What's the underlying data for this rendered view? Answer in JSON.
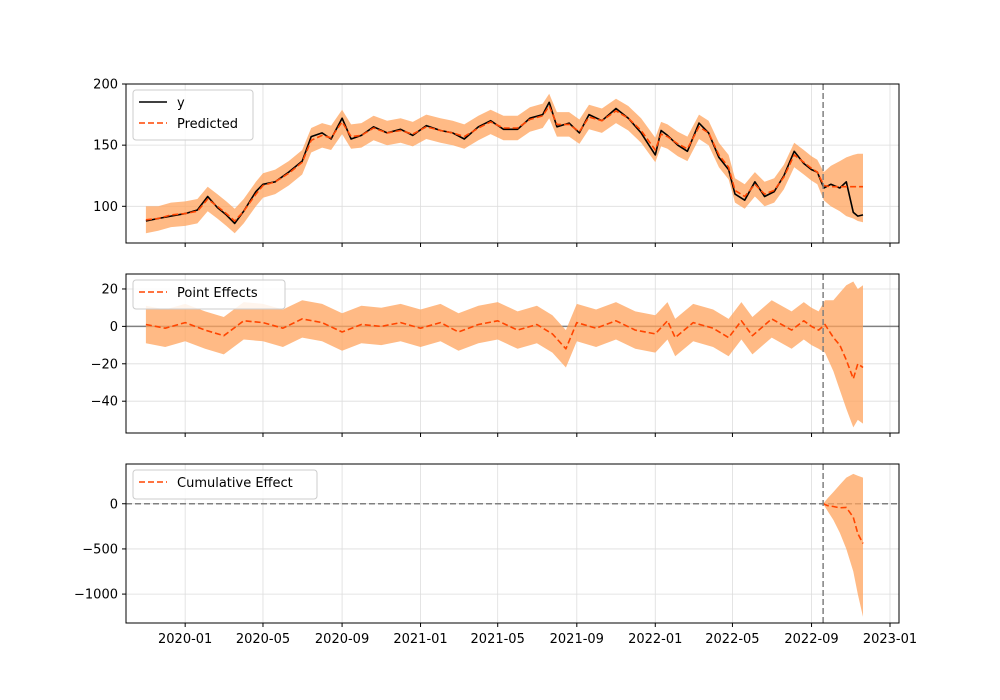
{
  "chart_data": [
    {
      "type": "line",
      "panel": "observed-vs-predicted",
      "ylim": [
        70,
        200
      ],
      "yticks": [
        100,
        150,
        200
      ],
      "ytick_labels": [
        "100",
        "150",
        "200"
      ],
      "grid": true,
      "legend_position": "top-left",
      "series": [
        {
          "name": "y",
          "color": "#000000",
          "style": "solid",
          "x": [
            "2019-11-01",
            "2019-11-20",
            "2019-12-10",
            "2020-01-01",
            "2020-01-20",
            "2020-02-05",
            "2020-02-20",
            "2020-03-05",
            "2020-03-18",
            "2020-04-01",
            "2020-04-20",
            "2020-05-01",
            "2020-05-20",
            "2020-06-10",
            "2020-07-01",
            "2020-07-15",
            "2020-08-01",
            "2020-08-15",
            "2020-09-01",
            "2020-09-15",
            "2020-10-01",
            "2020-10-20",
            "2020-11-10",
            "2020-12-01",
            "2020-12-20",
            "2021-01-10",
            "2021-02-01",
            "2021-02-20",
            "2021-03-10",
            "2021-04-01",
            "2021-04-20",
            "2021-05-10",
            "2021-06-01",
            "2021-06-20",
            "2021-07-10",
            "2021-07-20",
            "2021-08-01",
            "2021-08-20",
            "2021-09-05",
            "2021-09-20",
            "2021-10-10",
            "2021-11-01",
            "2021-11-20",
            "2021-12-10",
            "2022-01-01",
            "2022-01-10",
            "2022-01-20",
            "2022-02-05",
            "2022-02-20",
            "2022-03-10",
            "2022-03-25",
            "2022-04-10",
            "2022-04-25",
            "2022-05-05",
            "2022-05-20",
            "2022-06-05",
            "2022-06-20",
            "2022-07-05",
            "2022-07-20",
            "2022-08-05",
            "2022-08-20",
            "2022-09-01",
            "2022-09-10",
            "2022-09-20",
            "2022-10-01",
            "2022-10-15",
            "2022-10-25",
            "2022-11-05",
            "2022-11-12",
            "2022-11-20"
          ],
          "values": [
            88,
            90,
            92,
            94,
            97,
            108,
            99,
            93,
            86,
            96,
            112,
            118,
            120,
            128,
            137,
            157,
            160,
            155,
            172,
            155,
            158,
            165,
            160,
            163,
            158,
            166,
            162,
            160,
            155,
            165,
            170,
            163,
            163,
            172,
            175,
            185,
            165,
            168,
            160,
            175,
            170,
            180,
            172,
            160,
            142,
            162,
            158,
            150,
            145,
            168,
            160,
            140,
            130,
            110,
            105,
            120,
            108,
            112,
            125,
            145,
            135,
            130,
            128,
            115,
            118,
            115,
            120,
            95,
            92,
            93
          ]
        },
        {
          "name": "Predicted",
          "color": "#ff4500",
          "style": "dashed",
          "x": [
            "2019-11-01",
            "2019-11-20",
            "2019-12-10",
            "2020-01-01",
            "2020-01-20",
            "2020-02-05",
            "2020-02-20",
            "2020-03-05",
            "2020-03-18",
            "2020-04-01",
            "2020-04-20",
            "2020-05-01",
            "2020-05-20",
            "2020-06-10",
            "2020-07-01",
            "2020-07-15",
            "2020-08-01",
            "2020-08-15",
            "2020-09-01",
            "2020-09-15",
            "2020-10-01",
            "2020-10-20",
            "2020-11-10",
            "2020-12-01",
            "2020-12-20",
            "2021-01-10",
            "2021-02-01",
            "2021-02-20",
            "2021-03-10",
            "2021-04-01",
            "2021-04-20",
            "2021-05-10",
            "2021-06-01",
            "2021-06-20",
            "2021-07-10",
            "2021-07-20",
            "2021-08-01",
            "2021-08-20",
            "2021-09-05",
            "2021-09-20",
            "2021-10-10",
            "2021-11-01",
            "2021-11-20",
            "2021-12-10",
            "2022-01-01",
            "2022-01-10",
            "2022-01-20",
            "2022-02-05",
            "2022-02-20",
            "2022-03-10",
            "2022-03-25",
            "2022-04-10",
            "2022-04-25",
            "2022-05-05",
            "2022-05-20",
            "2022-06-05",
            "2022-06-20",
            "2022-07-05",
            "2022-07-20",
            "2022-08-05",
            "2022-08-20",
            "2022-09-01",
            "2022-09-10",
            "2022-09-20",
            "2022-10-01",
            "2022-10-15",
            "2022-10-25",
            "2022-11-05",
            "2022-11-12",
            "2022-11-20"
          ],
          "values": [
            89,
            90,
            93,
            94,
            96,
            106,
            100,
            94,
            88,
            96,
            110,
            117,
            120,
            127,
            136,
            154,
            158,
            156,
            169,
            157,
            158,
            164,
            160,
            162,
            159,
            165,
            162,
            160,
            157,
            164,
            169,
            164,
            164,
            171,
            174,
            182,
            167,
            167,
            161,
            173,
            170,
            178,
            172,
            162,
            146,
            159,
            157,
            151,
            147,
            165,
            160,
            142,
            132,
            113,
            108,
            118,
            110,
            113,
            124,
            142,
            136,
            131,
            128,
            117,
            116,
            116,
            116,
            116,
            116,
            116
          ]
        }
      ],
      "band": {
        "series": "Predicted",
        "color": "#ffa35c",
        "lower": [
          78,
          80,
          83,
          84,
          86,
          96,
          90,
          84,
          78,
          86,
          100,
          107,
          110,
          117,
          126,
          144,
          148,
          146,
          159,
          147,
          148,
          154,
          150,
          152,
          149,
          155,
          152,
          150,
          147,
          154,
          159,
          154,
          154,
          161,
          164,
          172,
          157,
          157,
          151,
          163,
          160,
          168,
          162,
          152,
          136,
          149,
          147,
          141,
          137,
          155,
          150,
          132,
          122,
          103,
          98,
          108,
          100,
          103,
          114,
          132,
          126,
          121,
          118,
          105,
          100,
          96,
          92,
          90,
          88,
          87
        ],
        "upper": [
          100,
          100,
          103,
          104,
          106,
          116,
          110,
          104,
          98,
          106,
          120,
          127,
          130,
          137,
          146,
          164,
          168,
          166,
          179,
          167,
          168,
          174,
          170,
          172,
          169,
          175,
          172,
          170,
          167,
          174,
          179,
          174,
          174,
          181,
          184,
          192,
          177,
          177,
          171,
          183,
          180,
          188,
          182,
          172,
          156,
          169,
          167,
          161,
          157,
          175,
          170,
          152,
          142,
          123,
          118,
          128,
          120,
          123,
          134,
          152,
          146,
          141,
          138,
          128,
          133,
          137,
          140,
          142,
          143,
          143
        ]
      }
    },
    {
      "type": "line",
      "panel": "point-effects",
      "ylim": [
        -57,
        28
      ],
      "yticks": [
        -40,
        -20,
        0,
        20
      ],
      "ytick_labels": [
        "−40",
        "−20",
        "0",
        "20"
      ],
      "grid": true,
      "legend_position": "top-left",
      "zero_line": true,
      "series": [
        {
          "name": "Point Effects",
          "color": "#ff4500",
          "style": "dashed",
          "x": [
            "2019-11-01",
            "2019-12-01",
            "2020-01-01",
            "2020-02-01",
            "2020-03-01",
            "2020-04-01",
            "2020-05-01",
            "2020-06-01",
            "2020-07-01",
            "2020-08-01",
            "2020-09-01",
            "2020-10-01",
            "2020-11-01",
            "2020-12-01",
            "2021-01-01",
            "2021-02-01",
            "2021-03-01",
            "2021-04-01",
            "2021-05-01",
            "2021-06-01",
            "2021-07-01",
            "2021-07-25",
            "2021-08-15",
            "2021-09-01",
            "2021-10-01",
            "2021-11-01",
            "2021-12-01",
            "2022-01-01",
            "2022-01-20",
            "2022-02-01",
            "2022-03-01",
            "2022-04-01",
            "2022-04-25",
            "2022-05-15",
            "2022-06-01",
            "2022-07-01",
            "2022-08-01",
            "2022-08-20",
            "2022-09-01",
            "2022-09-12",
            "2022-09-22",
            "2022-10-05",
            "2022-10-15",
            "2022-10-25",
            "2022-11-05",
            "2022-11-12",
            "2022-11-20"
          ],
          "values": [
            1,
            -1,
            2,
            -2,
            -5,
            3,
            2,
            -1,
            4,
            2,
            -3,
            1,
            0,
            2,
            -1,
            2,
            -3,
            1,
            3,
            -2,
            1,
            -4,
            -12,
            2,
            -1,
            3,
            -2,
            -4,
            3,
            -6,
            2,
            -1,
            -6,
            3,
            -5,
            4,
            -2,
            3,
            0,
            -2,
            1,
            -6,
            -10,
            -18,
            -28,
            -20,
            -22
          ]
        }
      ],
      "band": {
        "series": "Point Effects",
        "color": "#ffa35c",
        "lower": [
          -9,
          -11,
          -8,
          -12,
          -15,
          -7,
          -8,
          -11,
          -6,
          -8,
          -13,
          -9,
          -10,
          -8,
          -11,
          -8,
          -13,
          -9,
          -7,
          -12,
          -9,
          -14,
          -22,
          -8,
          -11,
          -7,
          -12,
          -14,
          -7,
          -16,
          -8,
          -11,
          -16,
          -7,
          -15,
          -6,
          -12,
          -7,
          -10,
          -12,
          -14,
          -24,
          -34,
          -44,
          -54,
          -50,
          -52
        ],
        "upper": [
          11,
          9,
          12,
          8,
          5,
          13,
          12,
          9,
          14,
          12,
          7,
          11,
          10,
          12,
          9,
          12,
          7,
          11,
          13,
          8,
          11,
          6,
          -2,
          12,
          9,
          13,
          8,
          6,
          13,
          4,
          12,
          9,
          4,
          13,
          5,
          14,
          8,
          13,
          10,
          8,
          14,
          14,
          18,
          22,
          24,
          20,
          22
        ]
      }
    },
    {
      "type": "line",
      "panel": "cumulative-effect",
      "ylim": [
        -1320,
        440
      ],
      "yticks": [
        -1000,
        -500,
        0
      ],
      "ytick_labels": [
        "−1000",
        "−500",
        "0"
      ],
      "grid": true,
      "legend_position": "top-left",
      "zero_line": true,
      "series": [
        {
          "name": "Cumulative Effect",
          "color": "#ff4500",
          "style": "dashed",
          "x": [
            "2022-09-19",
            "2022-09-26",
            "2022-10-05",
            "2022-10-15",
            "2022-10-25",
            "2022-11-05",
            "2022-11-12",
            "2022-11-20"
          ],
          "values": [
            0,
            -20,
            -30,
            -45,
            -40,
            -150,
            -330,
            -440
          ]
        }
      ],
      "band": {
        "series": "Cumulative Effect",
        "color": "#ffa35c",
        "lower": [
          0,
          -80,
          -180,
          -320,
          -500,
          -750,
          -1000,
          -1250
        ],
        "upper": [
          0,
          60,
          130,
          210,
          290,
          330,
          310,
          290
        ]
      }
    }
  ],
  "xaxis": {
    "ticks": [
      "2020-01-01",
      "2020-05-01",
      "2020-09-01",
      "2021-01-01",
      "2021-05-01",
      "2021-09-01",
      "2022-01-01",
      "2022-05-01",
      "2022-09-01",
      "2023-01-01"
    ],
    "tick_labels": [
      "2020-01",
      "2020-05",
      "2020-09",
      "2021-01",
      "2021-05",
      "2021-09",
      "2022-01",
      "2022-05",
      "2022-09",
      "2023-01"
    ],
    "range": [
      "2019-10-01",
      "2023-01-15"
    ]
  },
  "intervention_date": "2022-09-19",
  "colors": {
    "observed": "#000000",
    "predicted": "#ff4500",
    "band": "#ffa35c",
    "reference_line": "#808080",
    "grid": "#dddddd"
  }
}
